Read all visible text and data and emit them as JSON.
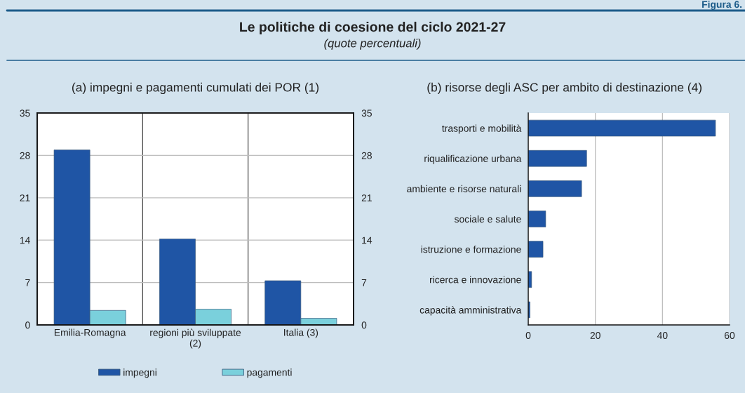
{
  "chart_data": [
    {
      "type": "other",
      "title": "Le politiche di coesione del ciclo 2021-27",
      "subtitle": "(quote percentuali)",
      "annotations": [
        "Figura 6."
      ]
    },
    {
      "type": "bar",
      "title": "(a) impegni e pagamenti cumulati dei POR (1)",
      "categories": [
        "Emilia-Romagna",
        "regioni più sviluppate\n(2)",
        "Italia (3)"
      ],
      "series": [
        {
          "name": "impegni",
          "color": "#1f55a5",
          "values": [
            28.9,
            14.2,
            7.3
          ]
        },
        {
          "name": "pagamenti",
          "color": "#7ad0dc",
          "values": [
            2.4,
            2.6,
            1.1
          ]
        }
      ],
      "ylim": [
        0,
        35
      ],
      "yticks": [
        0,
        7,
        14,
        21,
        28,
        35
      ],
      "y2lim": [
        0,
        35
      ],
      "y2ticks": [
        0,
        7,
        14,
        21,
        28,
        35
      ],
      "grid": true,
      "legend": "bottom"
    },
    {
      "type": "bar",
      "orientation": "horizontal",
      "title": "(b) risorse degli ASC per ambito di destinazione (4)",
      "categories": [
        "trasporti e mobilità",
        "riqualificazione urbana",
        "ambiente e risorse naturali",
        "sociale e salute",
        "istruzione e formazione",
        "ricerca e innovazione",
        "capacità amministrativa"
      ],
      "values": [
        55.8,
        17.4,
        15.9,
        5.2,
        4.4,
        1.0,
        0.5
      ],
      "color": "#1f55a5",
      "xlim": [
        0,
        60
      ],
      "xticks": [
        0,
        20,
        40,
        60
      ],
      "grid": "x"
    }
  ]
}
